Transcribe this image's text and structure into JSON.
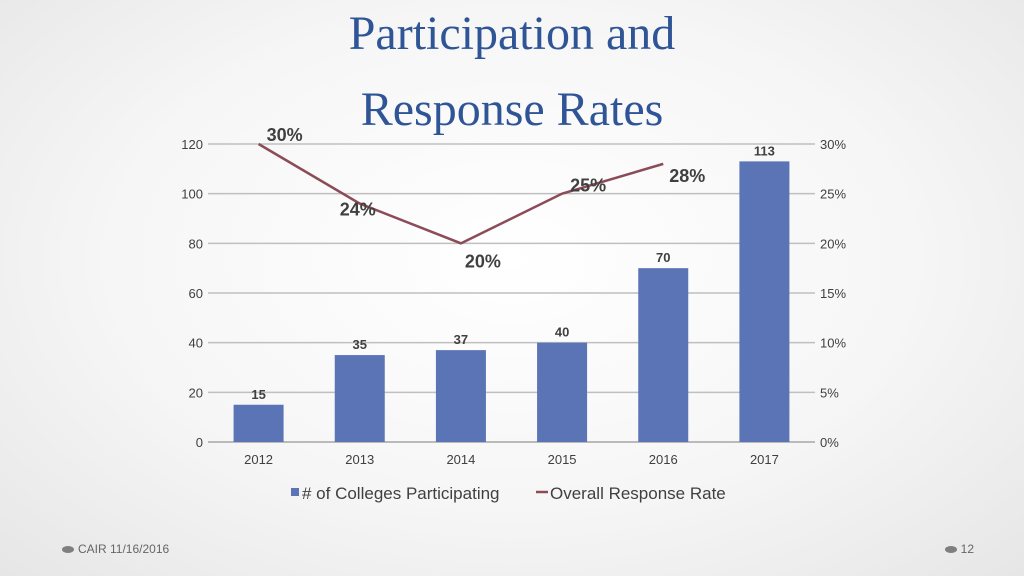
{
  "slide": {
    "title_line1": "Participation and",
    "title_line2": "Response Rates",
    "footer_text": "CAIR 11/16/2016",
    "page_number": "12"
  },
  "chart_data": {
    "type": "bar",
    "categories": [
      "2012",
      "2013",
      "2014",
      "2015",
      "2016",
      "2017"
    ],
    "series": [
      {
        "name": "# of Colleges Participating",
        "type": "bar",
        "axis": "left",
        "color": "#5b74b5",
        "values": [
          15,
          35,
          37,
          40,
          70,
          113
        ],
        "labels": [
          "15",
          "35",
          "37",
          "40",
          "70",
          "113"
        ]
      },
      {
        "name": "Overall Response Rate",
        "type": "line",
        "axis": "right",
        "color": "#8b4c57",
        "values": [
          30,
          24,
          20,
          25,
          28,
          null
        ],
        "labels": [
          "30%",
          "24%",
          "20%",
          "25%",
          "28%",
          ""
        ]
      }
    ],
    "y_left": {
      "min": 0,
      "max": 120,
      "ticks": [
        "0",
        "20",
        "40",
        "60",
        "80",
        "100",
        "120"
      ]
    },
    "y_right": {
      "min": 0,
      "max": 30,
      "ticks": [
        "0%",
        "5%",
        "10%",
        "15%",
        "20%",
        "25%",
        "30%"
      ]
    },
    "legend_position": "bottom",
    "grid": true
  }
}
